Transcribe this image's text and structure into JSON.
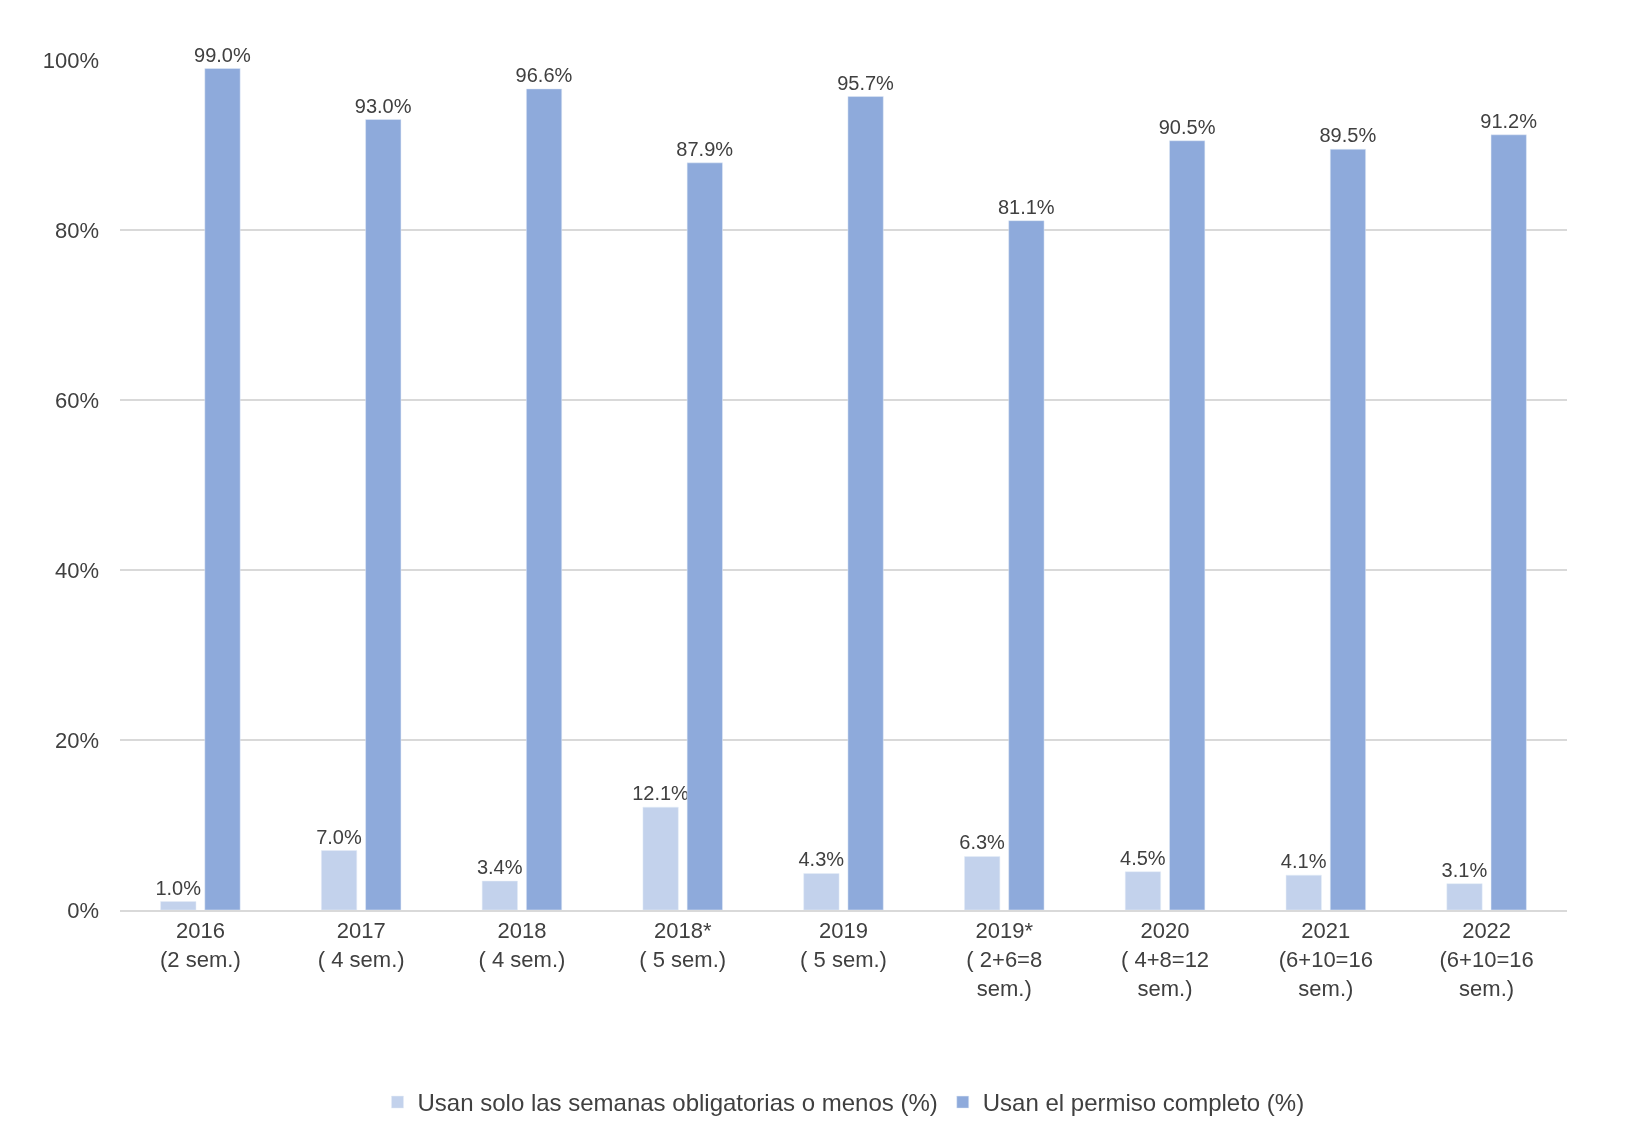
{
  "chart_data": {
    "type": "bar",
    "categories": [
      "2016\n(2 sem.)",
      "2017\n( 4 sem.)",
      "2018\n( 4 sem.)",
      "2018*\n( 5 sem.)",
      "2019\n( 5 sem.)",
      "2019*\n( 2+6=8\nsem.)",
      "2020\n( 4+8=12\nsem.)",
      "2021\n(6+10=16\nsem.)",
      "2022\n(6+10=16\nsem.)"
    ],
    "series": [
      {
        "name": "Usan solo las semanas obligatorias o menos (%)",
        "color": "#c3d2ec",
        "values": [
          1.0,
          7.0,
          3.4,
          12.1,
          4.3,
          6.3,
          4.5,
          4.1,
          3.1
        ],
        "value_labels": [
          "1.0%",
          "7.0%",
          "3.4%",
          "12.1%",
          "4.3%",
          "6.3%",
          "4.5%",
          "4.1%",
          "3.1%"
        ]
      },
      {
        "name": "Usan el permiso completo (%)",
        "color": "#8eaadb",
        "values": [
          99.0,
          93.0,
          96.6,
          87.9,
          95.7,
          81.1,
          90.5,
          89.5,
          91.2
        ],
        "value_labels": [
          "99.0%",
          "93.0%",
          "96.6%",
          "87.9%",
          "95.7%",
          "81.1%",
          "90.5%",
          "89.5%",
          "91.2%"
        ]
      }
    ],
    "ylim": [
      0,
      100
    ],
    "yticks": [
      {
        "value": 0,
        "label": "0%"
      },
      {
        "value": 20,
        "label": "20%"
      },
      {
        "value": 40,
        "label": "40%"
      },
      {
        "value": 60,
        "label": "60%"
      },
      {
        "value": 80,
        "label": "80%"
      },
      {
        "value": 100,
        "label": "100%"
      }
    ],
    "grid": "y",
    "legend": "bottom"
  }
}
